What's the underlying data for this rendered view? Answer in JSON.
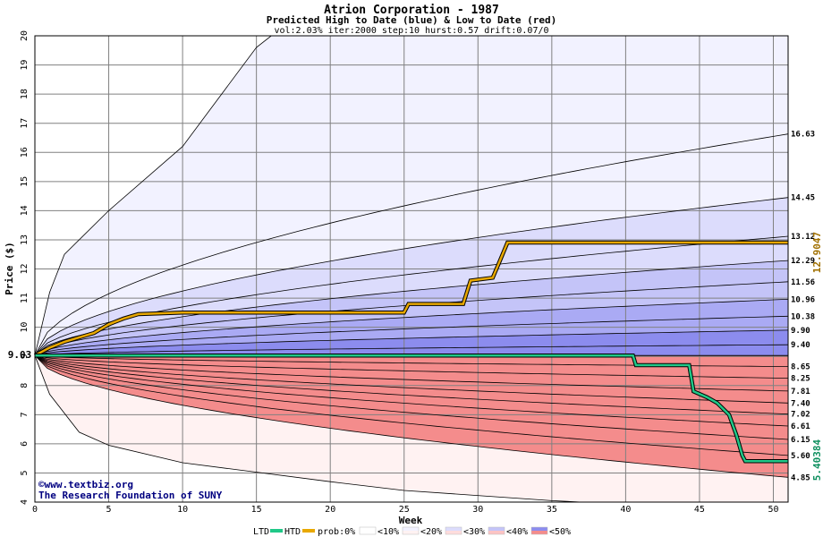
{
  "title": "Atrion Corporation - 1987",
  "subtitle": "Predicted High to Date (blue) &  Low to Date (red)",
  "params": "vol:2.03% iter:2000 step:10 hurst:0.57 drift:0.07/0",
  "xlabel": "Week",
  "ylabel": "Price ($)",
  "credit_line1": "©www.textbiz.org",
  "credit_line2": "The Research Foundation of SUNY",
  "start_value_label": "9.03",
  "htd_final_label": "12.9047",
  "ltd_final_label": "5.40384",
  "legend": {
    "ltd": "LTD",
    "htd": "HTD",
    "prob": "prob:0%",
    "b10": "<10%",
    "b20": "<20%",
    "b30": "<30%",
    "b40": "<40%",
    "b50": "<50%"
  },
  "colors": {
    "htd": "#e8a800",
    "ltd": "#20c888",
    "blue_bands": [
      "#f2f2ff",
      "#dcdcfc",
      "#c4c4f8",
      "#aaaaf4",
      "#8c8cee"
    ],
    "red_bands": [
      "#fff2f2",
      "#fedcdc",
      "#fcc4c4",
      "#faaaaa",
      "#f48c8c"
    ],
    "grid": "#808080"
  },
  "chart_data": {
    "type": "area",
    "xlim": [
      0,
      51
    ],
    "ylim": [
      4,
      20
    ],
    "x_ticks": [
      0,
      5,
      10,
      15,
      20,
      25,
      30,
      35,
      40,
      45,
      50
    ],
    "y_ticks": [
      4,
      5,
      6,
      7,
      8,
      9,
      10,
      11,
      12,
      13,
      14,
      15,
      16,
      17,
      18,
      19,
      20
    ],
    "start_value": 9.03,
    "high_percentile_end_labels": [
      "16.63",
      "14.45",
      "13.12",
      "12.29",
      "11.56",
      "10.96",
      "10.38",
      "9.90",
      "9.40"
    ],
    "low_percentile_end_labels": [
      "8.65",
      "8.25",
      "7.81",
      "7.40",
      "7.02",
      "6.61",
      "6.15",
      "5.60",
      "4.85"
    ],
    "high_percentile_end_values": [
      16.63,
      14.45,
      13.12,
      12.29,
      11.56,
      10.96,
      10.38,
      9.9,
      9.4
    ],
    "low_percentile_end_values": [
      8.65,
      8.25,
      7.81,
      7.4,
      7.02,
      6.61,
      6.15,
      5.6,
      4.85
    ],
    "high_extreme": [
      [
        0,
        9.03
      ],
      [
        1,
        11.2
      ],
      [
        2,
        12.5
      ],
      [
        5,
        14.0
      ],
      [
        10,
        16.2
      ],
      [
        15,
        19.6
      ],
      [
        16,
        20.0
      ]
    ],
    "low_extreme": [
      [
        0,
        9.03
      ],
      [
        1,
        7.7
      ],
      [
        3,
        6.4
      ],
      [
        5,
        5.95
      ],
      [
        10,
        5.35
      ],
      [
        20,
        4.7
      ],
      [
        25,
        4.4
      ],
      [
        35,
        4.05
      ],
      [
        37,
        4.0
      ]
    ],
    "htd_path": [
      [
        0,
        9.03
      ],
      [
        1,
        9.3
      ],
      [
        2,
        9.5
      ],
      [
        3,
        9.65
      ],
      [
        4,
        9.8
      ],
      [
        5,
        10.1
      ],
      [
        6,
        10.3
      ],
      [
        7,
        10.45
      ],
      [
        10,
        10.5
      ],
      [
        25,
        10.5
      ],
      [
        25.3,
        10.8
      ],
      [
        29,
        10.8
      ],
      [
        29.5,
        11.6
      ],
      [
        31,
        11.7
      ],
      [
        31.5,
        12.3
      ],
      [
        32,
        12.9047
      ],
      [
        51,
        12.9047
      ]
    ],
    "ltd_path": [
      [
        0,
        9.03
      ],
      [
        40.5,
        9.03
      ],
      [
        40.7,
        8.7
      ],
      [
        44.3,
        8.7
      ],
      [
        44.6,
        7.8
      ],
      [
        45.5,
        7.6
      ],
      [
        46.2,
        7.4
      ],
      [
        47,
        7.0
      ],
      [
        47.5,
        6.3
      ],
      [
        47.9,
        5.6
      ],
      [
        48.1,
        5.40384
      ],
      [
        51,
        5.40384
      ]
    ]
  }
}
